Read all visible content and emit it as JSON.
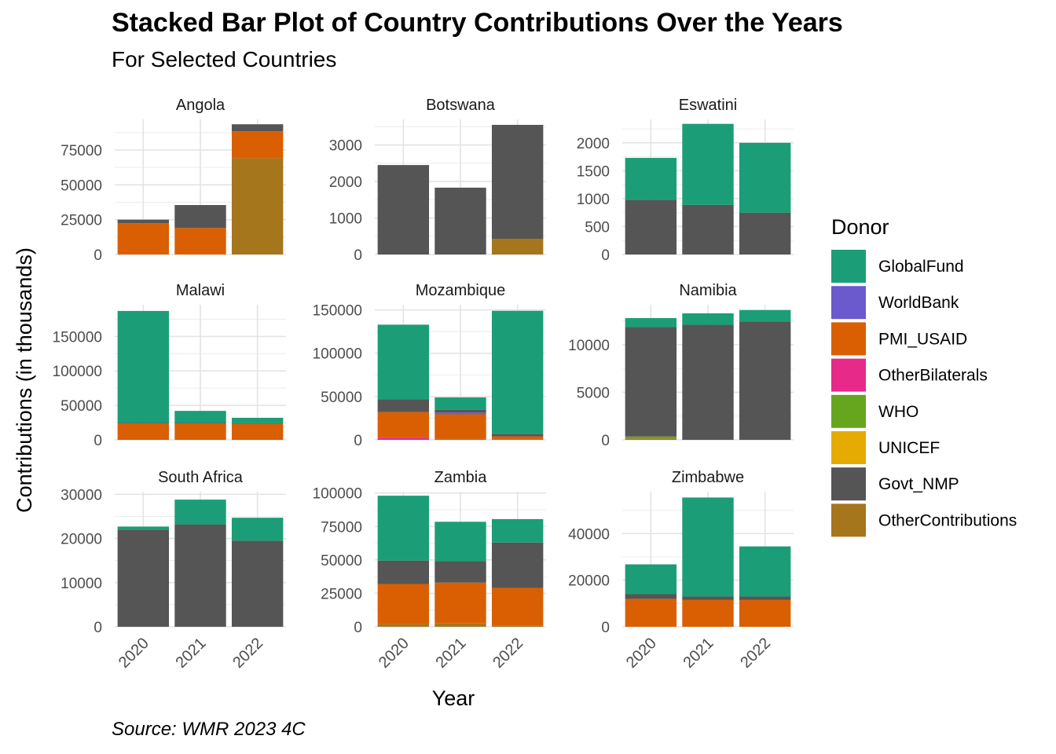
{
  "title": "Stacked Bar Plot of Country Contributions Over the Years",
  "subtitle": "For Selected Countries",
  "caption": "Source: WMR 2023 4C",
  "chart_data": {
    "type": "bar",
    "stacked": true,
    "facet_layout": "3x3 grid",
    "xlabel": "Year",
    "ylabel": "Contributions (in thousands)",
    "legend": {
      "title": "Donor",
      "position": "right",
      "entries": [
        {
          "name": "GlobalFund",
          "color": "#1B9E77"
        },
        {
          "name": "WorldBank",
          "color": "#6A5ACD"
        },
        {
          "name": "PMI_USAID",
          "color": "#D95F02"
        },
        {
          "name": "OtherBilaterals",
          "color": "#E7298A"
        },
        {
          "name": "WHO",
          "color": "#66A61E"
        },
        {
          "name": "UNICEF",
          "color": "#E6AB02"
        },
        {
          "name": "Govt_NMP",
          "color": "#555555"
        },
        {
          "name": "OtherContributions",
          "color": "#A6761D"
        }
      ]
    },
    "stack_order_bottom_to_top": [
      "OtherContributions",
      "UNICEF",
      "WHO",
      "OtherBilaterals",
      "PMI_USAID",
      "WorldBank",
      "Govt_NMP",
      "GlobalFund"
    ],
    "grid": true,
    "categories": [
      "2020",
      "2021",
      "2022"
    ],
    "facets": [
      {
        "name": "Angola",
        "ylim": [
          0,
          97000
        ],
        "yticks": [
          0,
          25000,
          50000,
          75000
        ],
        "bars": [
          {
            "year": "2020",
            "segments": {
              "Govt_NMP": 2500,
              "PMI_USAID": 22500
            }
          },
          {
            "year": "2021",
            "segments": {
              "Govt_NMP": 16500,
              "PMI_USAID": 19000
            }
          },
          {
            "year": "2022",
            "segments": {
              "OtherContributions": 69000,
              "Govt_NMP": 5000,
              "PMI_USAID": 19500
            }
          }
        ]
      },
      {
        "name": "Botswana",
        "ylim": [
          0,
          3700
        ],
        "yticks": [
          0,
          1000,
          2000,
          3000
        ],
        "bars": [
          {
            "year": "2020",
            "segments": {
              "Govt_NMP": 2450
            }
          },
          {
            "year": "2021",
            "segments": {
              "Govt_NMP": 1830
            }
          },
          {
            "year": "2022",
            "segments": {
              "OtherContributions": 430,
              "Govt_NMP": 3120
            }
          }
        ]
      },
      {
        "name": "Eswatini",
        "ylim": [
          0,
          2420
        ],
        "yticks": [
          0,
          500,
          1000,
          1500,
          2000
        ],
        "bars": [
          {
            "year": "2020",
            "segments": {
              "Govt_NMP": 980,
              "GlobalFund": 750
            }
          },
          {
            "year": "2021",
            "segments": {
              "Govt_NMP": 890,
              "GlobalFund": 1450
            }
          },
          {
            "year": "2022",
            "segments": {
              "Govt_NMP": 750,
              "GlobalFund": 1250
            }
          }
        ]
      },
      {
        "name": "Malawi",
        "ylim": [
          0,
          196000
        ],
        "yticks": [
          0,
          50000,
          100000,
          150000
        ],
        "bars": [
          {
            "year": "2020",
            "segments": {
              "Govt_NMP": 1000,
              "PMI_USAID": 24000,
              "GlobalFund": 162000
            }
          },
          {
            "year": "2021",
            "segments": {
              "Govt_NMP": 1000,
              "PMI_USAID": 24000,
              "GlobalFund": 17000
            }
          },
          {
            "year": "2022",
            "segments": {
              "Govt_NMP": 1000,
              "PMI_USAID": 23000,
              "GlobalFund": 8000
            }
          }
        ]
      },
      {
        "name": "Mozambique",
        "ylim": [
          0,
          156000
        ],
        "yticks": [
          0,
          50000,
          100000,
          150000
        ],
        "bars": [
          {
            "year": "2020",
            "segments": {
              "Govt_NMP": 15000,
              "OtherBilaterals": 2500,
              "PMI_USAID": 29500,
              "GlobalFund": 86000
            }
          },
          {
            "year": "2021",
            "segments": {
              "OtherContributions": 1000,
              "Govt_NMP": 3000,
              "WorldBank": 2000,
              "PMI_USAID": 28500,
              "GlobalFund": 14500
            }
          },
          {
            "year": "2022",
            "segments": {
              "OtherContributions": 1000,
              "Govt_NMP": 3000,
              "PMI_USAID": 3000,
              "GlobalFund": 142000
            }
          }
        ]
      },
      {
        "name": "Namibia",
        "ylim": [
          0,
          14200
        ],
        "yticks": [
          0,
          5000,
          10000
        ],
        "bars": [
          {
            "year": "2020",
            "segments": {
              "OtherContributions": 150,
              "Govt_NMP": 11500,
              "WHO": 200,
              "GlobalFund": 950
            }
          },
          {
            "year": "2021",
            "segments": {
              "Govt_NMP": 12100,
              "GlobalFund": 1200
            }
          },
          {
            "year": "2022",
            "segments": {
              "Govt_NMP": 12450,
              "GlobalFund": 1200
            }
          }
        ]
      },
      {
        "name": "South Africa",
        "ylim": [
          0,
          30600
        ],
        "yticks": [
          0,
          10000,
          20000,
          30000
        ],
        "bars": [
          {
            "year": "2020",
            "segments": {
              "Govt_NMP": 22000,
              "GlobalFund": 700
            }
          },
          {
            "year": "2021",
            "segments": {
              "Govt_NMP": 23200,
              "GlobalFund": 5600
            }
          },
          {
            "year": "2022",
            "segments": {
              "Govt_NMP": 19500,
              "GlobalFund": 5200
            }
          }
        ]
      },
      {
        "name": "Zambia",
        "ylim": [
          0,
          101000
        ],
        "yticks": [
          0,
          25000,
          50000,
          75000,
          100000
        ],
        "bars": [
          {
            "year": "2020",
            "segments": {
              "OtherContributions": 2000,
              "Govt_NMP": 17500,
              "PMI_USAID": 30000,
              "GlobalFund": 48500
            }
          },
          {
            "year": "2021",
            "segments": {
              "OtherContributions": 2500,
              "Govt_NMP": 16000,
              "PMI_USAID": 30500,
              "GlobalFund": 29500
            }
          },
          {
            "year": "2022",
            "segments": {
              "OtherContributions": 1000,
              "Govt_NMP": 34000,
              "PMI_USAID": 28000,
              "GlobalFund": 17500
            }
          }
        ]
      },
      {
        "name": "Zimbabwe",
        "ylim": [
          0,
          58000
        ],
        "yticks": [
          0,
          20000,
          40000
        ],
        "bars": [
          {
            "year": "2020",
            "segments": {
              "Govt_NMP": 2000,
              "PMI_USAID": 12000,
              "GlobalFund": 12800
            }
          },
          {
            "year": "2021",
            "segments": {
              "Govt_NMP": 1500,
              "PMI_USAID": 11500,
              "GlobalFund": 42500
            }
          },
          {
            "year": "2022",
            "segments": {
              "Govt_NMP": 1500,
              "PMI_USAID": 11500,
              "GlobalFund": 21500
            }
          }
        ]
      }
    ]
  }
}
